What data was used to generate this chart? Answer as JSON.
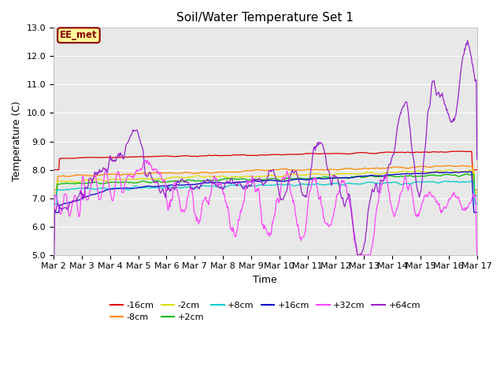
{
  "title": "Soil/Water Temperature Set 1",
  "ylabel": "Temperature (C)",
  "xlabel": "Time",
  "ylim": [
    5.0,
    13.0
  ],
  "xlim": [
    0,
    360
  ],
  "yticks": [
    5.0,
    6.0,
    7.0,
    8.0,
    9.0,
    10.0,
    11.0,
    12.0,
    13.0
  ],
  "xtick_labels": [
    "Mar 2",
    "Mar 3",
    "Mar 4",
    "Mar 5",
    "Mar 6",
    "Mar 7",
    "Mar 8",
    "Mar 9",
    "Mar 10",
    "Mar 11",
    "Mar 12",
    "Mar 13",
    "Mar 14",
    "Mar 15",
    "Mar 16",
    "Mar 17"
  ],
  "xtick_positions": [
    0,
    24,
    48,
    72,
    96,
    120,
    144,
    168,
    192,
    216,
    240,
    264,
    288,
    312,
    336,
    360
  ],
  "series_colors": [
    "#dd0000",
    "#ff8800",
    "#dddd00",
    "#00bb00",
    "#00cccc",
    "#0000cc",
    "#ff44ff",
    "#9922cc"
  ],
  "series_labels": [
    "-16cm",
    "-8cm",
    "-2cm",
    "+2cm",
    "+8cm",
    "+16cm",
    "+32cm",
    "+64cm"
  ],
  "bg_color": "#e8e8e8",
  "fig_color": "#ffffff",
  "annotation_text": "EE_met",
  "annotation_bg": "#ffff99",
  "annotation_border": "#880000",
  "title_fontsize": 11,
  "axis_fontsize": 9,
  "tick_fontsize": 8
}
